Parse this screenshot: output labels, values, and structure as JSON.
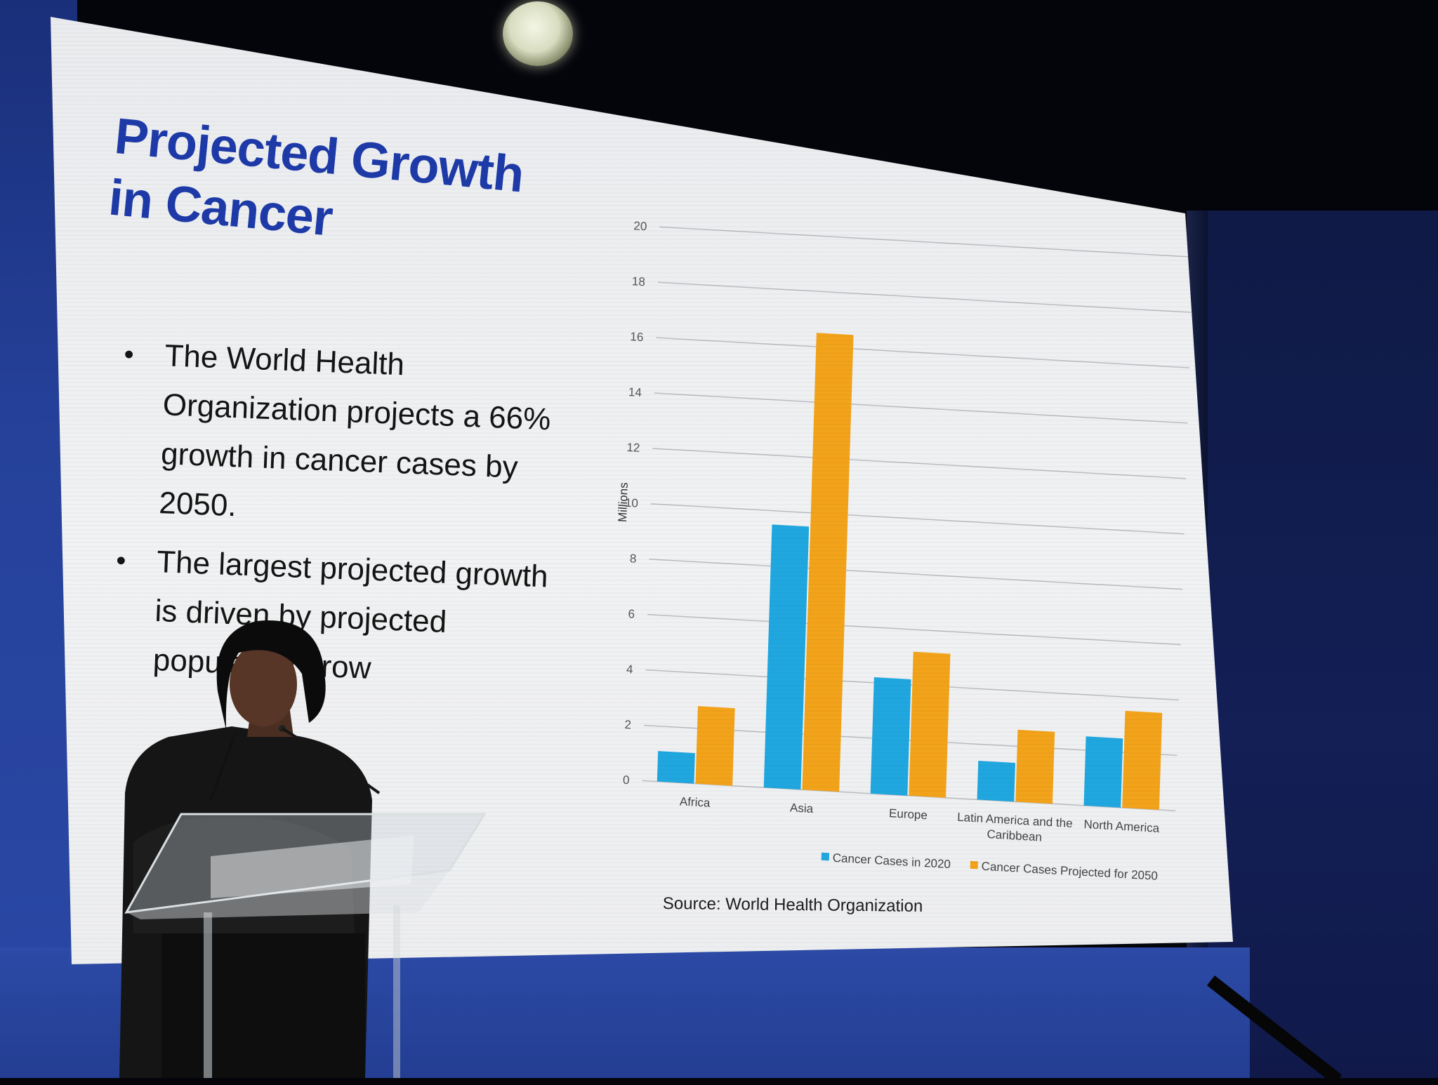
{
  "slide": {
    "title": "Projected Growth in Cancer",
    "bullets": [
      "The World Health Organization projects a 66% growth in cancer cases by 2050.",
      "The largest projected growth is driven by projected population grow"
    ],
    "source": "Source: World Health Organization"
  },
  "colors": {
    "series_2020": "#20a7df",
    "series_2050": "#f2a31a",
    "title": "#1d3aa8",
    "stage_blue": "#2a48a6"
  },
  "chart_data": {
    "type": "bar",
    "title": "",
    "xlabel": "",
    "ylabel": "Millions",
    "ylim": [
      0,
      20
    ],
    "yticks": [
      0,
      2,
      4,
      6,
      8,
      10,
      12,
      14,
      16,
      18,
      20
    ],
    "grid": true,
    "legend_position": "bottom",
    "categories": [
      "Africa",
      "Asia",
      "Europe",
      "Latin America and the Caribbean",
      "North America"
    ],
    "category_lines": [
      [
        "Africa"
      ],
      [
        "Asia"
      ],
      [
        "Europe"
      ],
      [
        "Latin America and the",
        "Caribbean"
      ],
      [
        "North America"
      ]
    ],
    "series": [
      {
        "name": "Cancer Cases in 2020",
        "values": [
          1.1,
          9.5,
          4.2,
          1.4,
          2.5
        ]
      },
      {
        "name": "Cancer Cases Projected for 2050",
        "values": [
          2.8,
          16.5,
          5.2,
          2.6,
          3.5
        ]
      }
    ]
  }
}
